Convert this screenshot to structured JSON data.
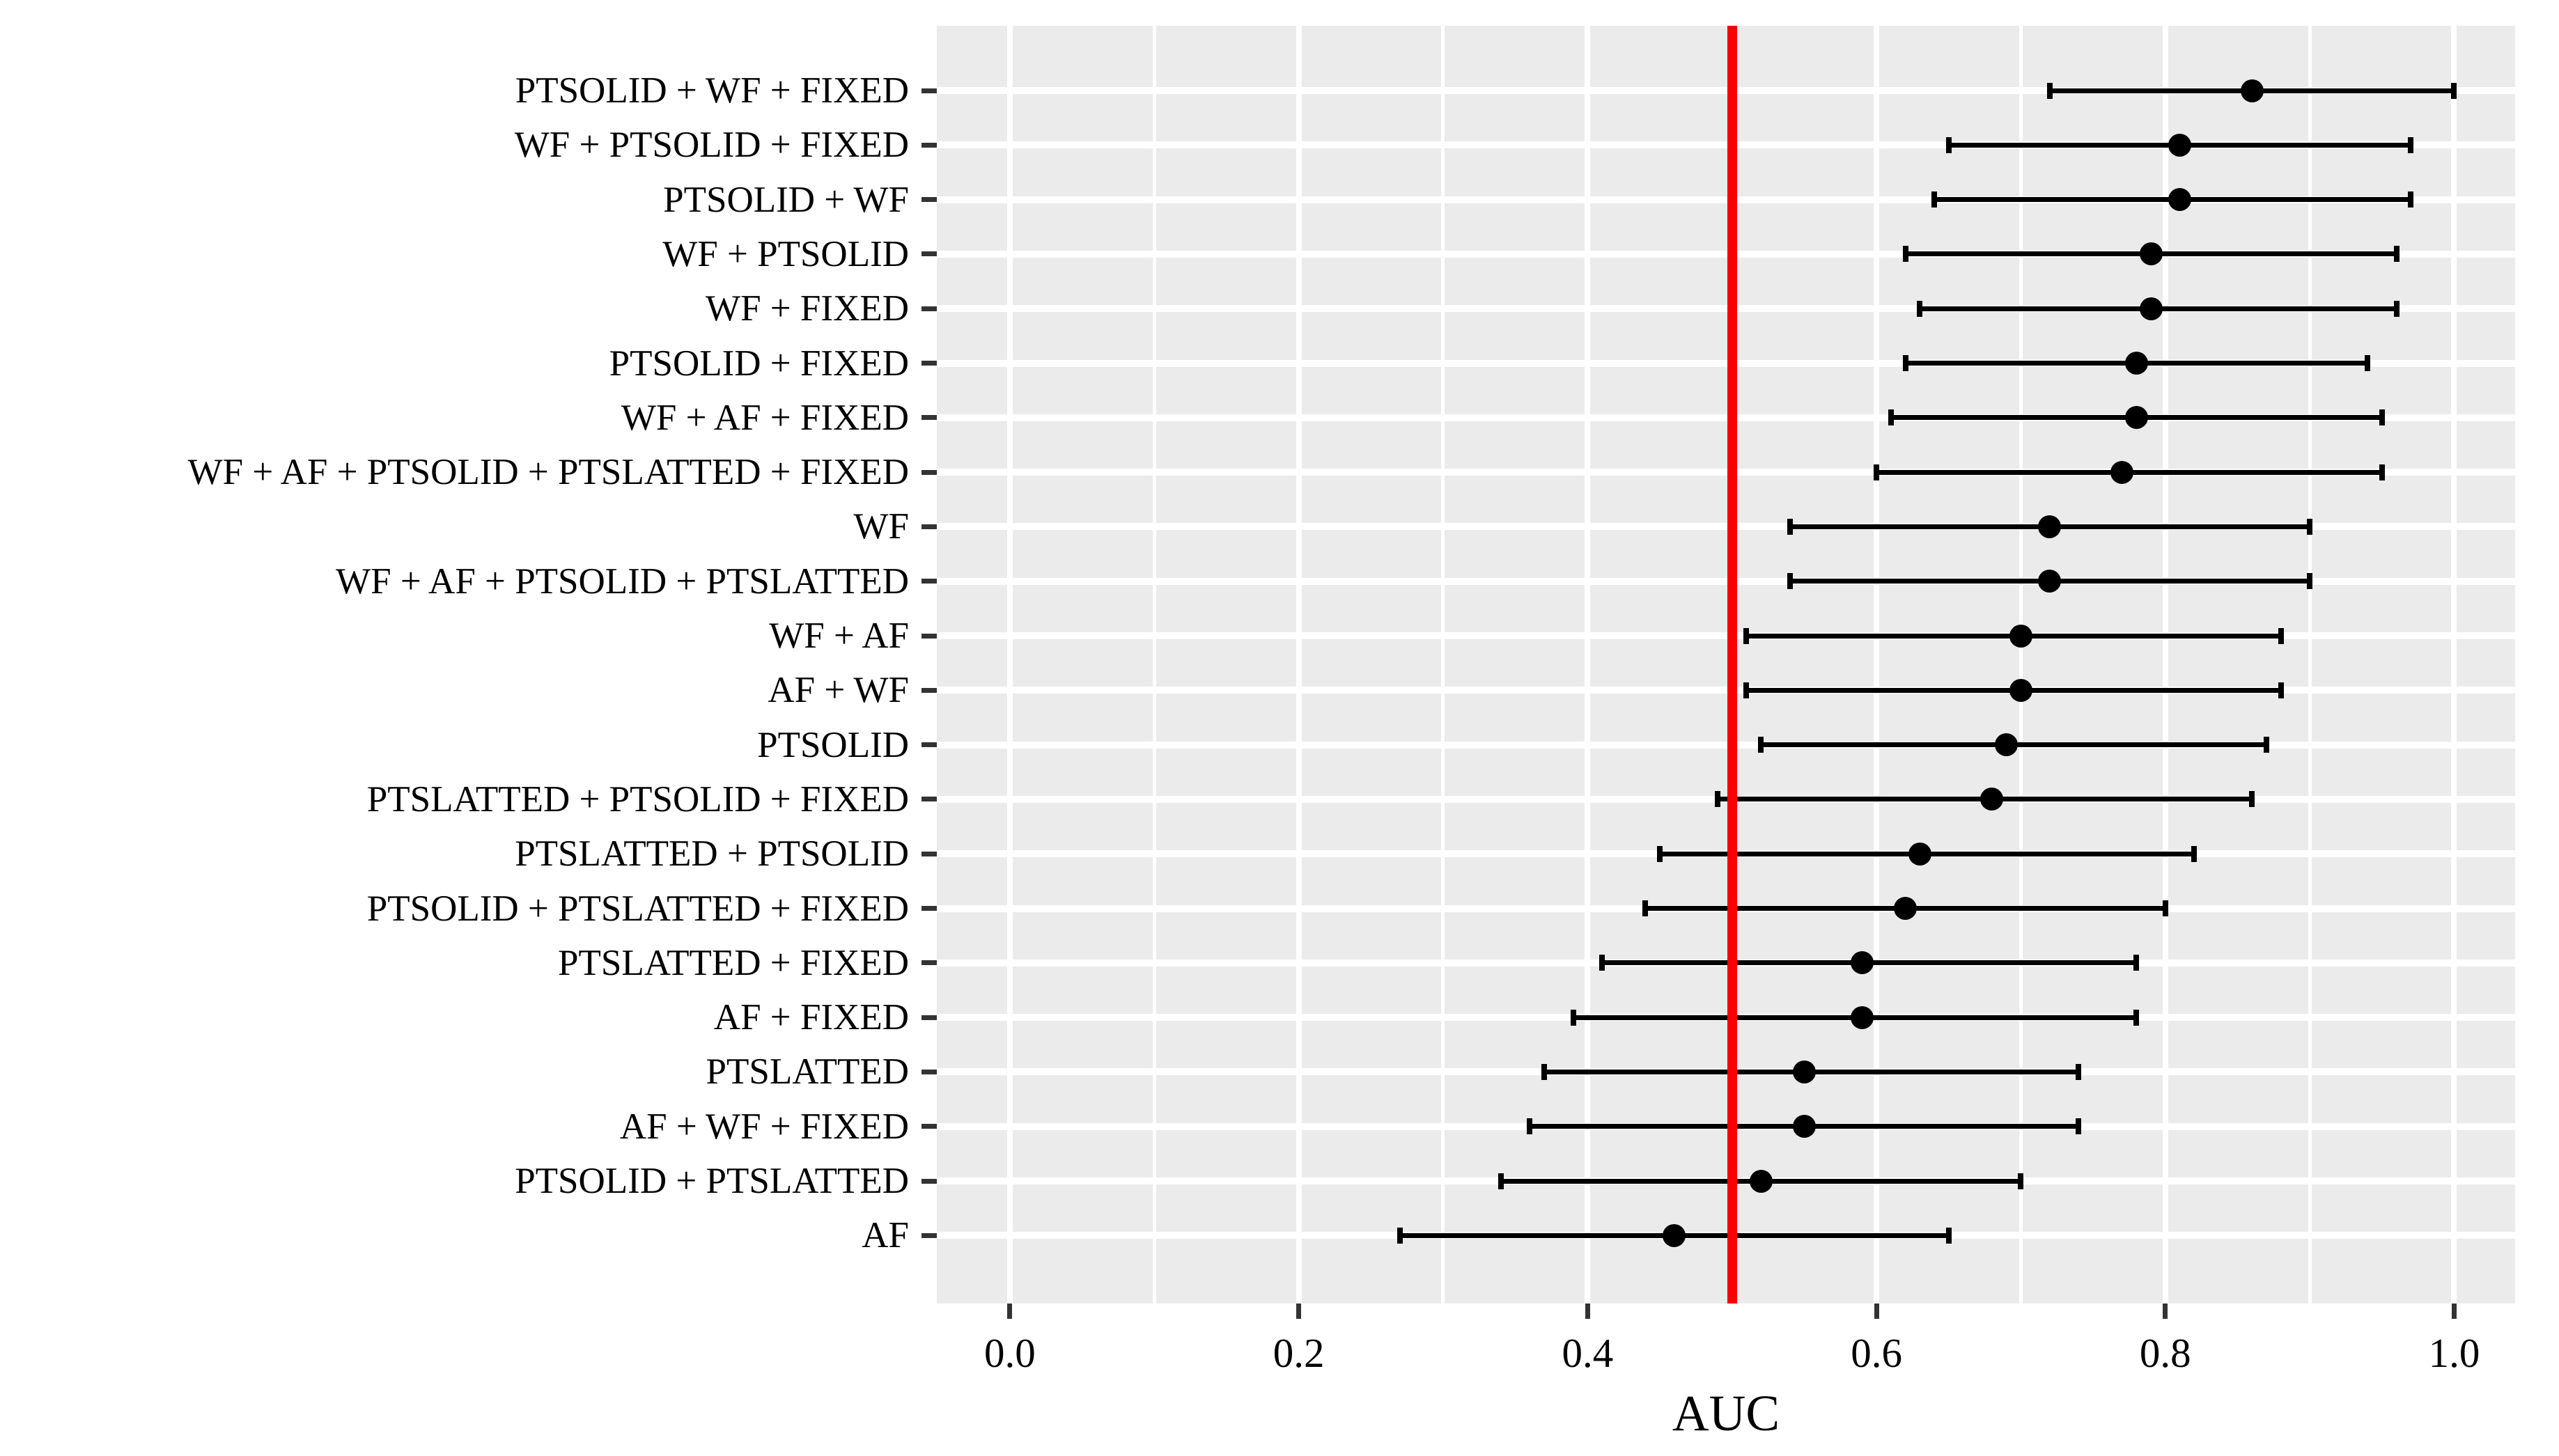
{
  "figure": {
    "kind": "forest-plot",
    "background_color": "#ffffff"
  },
  "chart_data": {
    "type": "scatter",
    "subtype": "pointrange-forest-plot",
    "title": "",
    "xlabel": "AUC",
    "ylabel": "",
    "xlim": [
      0.0,
      1.0
    ],
    "x_expanded_range": [
      -0.0506,
      1.0422
    ],
    "x_tick_labels": [
      "0.0",
      "0.2",
      "0.4",
      "0.6",
      "0.8",
      "1.0"
    ],
    "x_tick_values": [
      0.0,
      0.2,
      0.4,
      0.6,
      0.8,
      1.0
    ],
    "x_minor_tick_values": [
      0.1,
      0.3,
      0.5,
      0.7,
      0.9
    ],
    "grid": "on",
    "legend": "none",
    "panel_background_color": "#ebebeb",
    "gridline_color": "#ffffff",
    "point_color": "#000000",
    "axis_tick_color": "#333333",
    "reference_line": {
      "x": 0.5,
      "color": "#fb0000"
    },
    "series": [
      {
        "label": "PTSOLID + WF + FIXED",
        "ci_low": 0.72,
        "auc": 0.86,
        "ci_high": 1.0
      },
      {
        "label": "WF + PTSOLID + FIXED",
        "ci_low": 0.65,
        "auc": 0.81,
        "ci_high": 0.97
      },
      {
        "label": "PTSOLID + WF",
        "ci_low": 0.64,
        "auc": 0.81,
        "ci_high": 0.97
      },
      {
        "label": "WF + PTSOLID",
        "ci_low": 0.62,
        "auc": 0.79,
        "ci_high": 0.96
      },
      {
        "label": "WF + FIXED",
        "ci_low": 0.63,
        "auc": 0.79,
        "ci_high": 0.96
      },
      {
        "label": "PTSOLID + FIXED",
        "ci_low": 0.62,
        "auc": 0.78,
        "ci_high": 0.94
      },
      {
        "label": "WF + AF + FIXED",
        "ci_low": 0.61,
        "auc": 0.78,
        "ci_high": 0.95
      },
      {
        "label": "WF + AF + PTSOLID + PTSLATTED + FIXED",
        "ci_low": 0.6,
        "auc": 0.77,
        "ci_high": 0.95
      },
      {
        "label": "WF",
        "ci_low": 0.54,
        "auc": 0.72,
        "ci_high": 0.9
      },
      {
        "label": "WF + AF + PTSOLID + PTSLATTED",
        "ci_low": 0.54,
        "auc": 0.72,
        "ci_high": 0.9
      },
      {
        "label": "WF + AF",
        "ci_low": 0.51,
        "auc": 0.7,
        "ci_high": 0.88
      },
      {
        "label": "AF + WF",
        "ci_low": 0.51,
        "auc": 0.7,
        "ci_high": 0.88
      },
      {
        "label": "PTSOLID",
        "ci_low": 0.52,
        "auc": 0.69,
        "ci_high": 0.87
      },
      {
        "label": "PTSLATTED + PTSOLID + FIXED",
        "ci_low": 0.49,
        "auc": 0.68,
        "ci_high": 0.86
      },
      {
        "label": "PTSLATTED + PTSOLID",
        "ci_low": 0.45,
        "auc": 0.63,
        "ci_high": 0.82
      },
      {
        "label": "PTSOLID + PTSLATTED + FIXED",
        "ci_low": 0.44,
        "auc": 0.62,
        "ci_high": 0.8
      },
      {
        "label": "PTSLATTED + FIXED",
        "ci_low": 0.41,
        "auc": 0.59,
        "ci_high": 0.78
      },
      {
        "label": "AF + FIXED",
        "ci_low": 0.39,
        "auc": 0.59,
        "ci_high": 0.78
      },
      {
        "label": "PTSLATTED",
        "ci_low": 0.37,
        "auc": 0.55,
        "ci_high": 0.74
      },
      {
        "label": "AF + WF + FIXED",
        "ci_low": 0.36,
        "auc": 0.55,
        "ci_high": 0.74
      },
      {
        "label": "PTSOLID + PTSLATTED",
        "ci_low": 0.34,
        "auc": 0.52,
        "ci_high": 0.7
      },
      {
        "label": "AF",
        "ci_low": 0.27,
        "auc": 0.46,
        "ci_high": 0.65
      }
    ]
  }
}
